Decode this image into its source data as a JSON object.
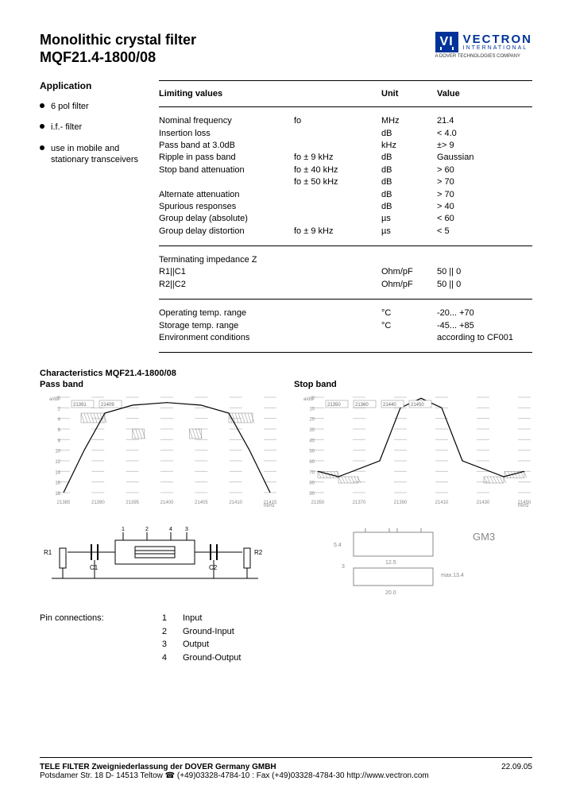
{
  "colors": {
    "brand": "#003399",
    "text": "#000000",
    "bg": "#ffffff",
    "grid": "#cccccc",
    "hatch": "#999999"
  },
  "header": {
    "title_line1": "Monolithic crystal filter",
    "title_line2": "MQF21.4-1800/08",
    "logo_mark": "VI",
    "logo_name": "VECTRON",
    "logo_sub": "INTERNATIONAL",
    "logo_tag": "A DOVER TECHNOLOGIES COMPANY"
  },
  "application": {
    "heading": "Application",
    "items": [
      "6 pol filter",
      "i.f.- filter",
      "use in mobile and stationary transceivers"
    ]
  },
  "spec_header": {
    "param": "Limiting values",
    "unit": "Unit",
    "value": "Value"
  },
  "specs_main": [
    {
      "param": "Nominal frequency",
      "cond": "fo",
      "unit": "MHz",
      "value": "21.4"
    },
    {
      "param": "Insertion loss",
      "cond": "",
      "unit": "dB",
      "value": "< 4.0"
    },
    {
      "param": "Pass band at 3.0dB",
      "cond": "",
      "unit": "kHz",
      "value": "±> 9"
    },
    {
      "param": "Ripple in pass band",
      "cond": "fo ±  9 kHz",
      "unit": "dB",
      "value": "Gaussian"
    },
    {
      "param": "Stop band attenuation",
      "cond": "fo ±  40 kHz",
      "unit": "dB",
      "value": "> 60"
    },
    {
      "param": "",
      "cond": "fo ±  50 kHz",
      "unit": "dB",
      "value": "> 70"
    },
    {
      "param": "Alternate attenuation",
      "cond": "",
      "unit": "dB",
      "value": "> 70"
    },
    {
      "param": "Spurious responses",
      "cond": "",
      "unit": "dB",
      "value": "> 40"
    },
    {
      "param": "Group delay (absolute)",
      "cond": "",
      "unit": "µs",
      "value": "< 60"
    },
    {
      "param": "Group delay distortion",
      "cond": "fo  ± 9 kHz",
      "unit": "µs",
      "value": "<  5"
    }
  ],
  "specs_impedance": [
    {
      "param": "Terminating impedance Z",
      "cond": "",
      "unit": "",
      "value": ""
    },
    {
      "param": "R1||C1",
      "cond": "",
      "unit": "Ohm/pF",
      "value": "50 ||  0"
    },
    {
      "param": "R2||C2",
      "cond": "",
      "unit": "Ohm/pF",
      "value": "50 ||  0"
    }
  ],
  "specs_env": [
    {
      "param": "Operating temp. range",
      "cond": "",
      "unit": "°C",
      "value": "-20... +70"
    },
    {
      "param": "Storage temp. range",
      "cond": "",
      "unit": "°C",
      "value": "-45... +85"
    },
    {
      "param": "Environment conditions",
      "cond": "",
      "unit": "",
      "value": "according to CF001"
    }
  ],
  "characteristics": {
    "title": "Characteristics    MQF21.4-1800/08",
    "passband_label": "Pass band",
    "stopband_label": "Stop band",
    "passband_chart": {
      "type": "line",
      "xlabel": "f/kHz",
      "ylabel": "a/dB",
      "xlim": [
        21385,
        21415
      ],
      "ylim": [
        0,
        18
      ],
      "xticks": [
        21385,
        21390,
        21395,
        21400,
        21405,
        21410,
        21415
      ],
      "yticks": [
        0,
        2,
        4,
        6,
        8,
        10,
        12,
        14,
        16,
        18
      ],
      "markers": [
        "21391",
        "21409"
      ],
      "curve_x": [
        21385,
        21388,
        21391,
        21395,
        21400,
        21405,
        21409,
        21412,
        21415
      ],
      "curve_y": [
        18,
        10,
        3,
        1.5,
        1,
        1.5,
        3,
        10,
        18
      ],
      "curve_color": "#000000",
      "hatch_regions": true
    },
    "stopband_chart": {
      "type": "line",
      "xlabel": "f/kHz",
      "ylabel": "a/dB",
      "xlim": [
        21350,
        21450
      ],
      "ylim": [
        0,
        90
      ],
      "xticks": [
        21350,
        21370,
        21390,
        21410,
        21430,
        21450
      ],
      "yticks": [
        0,
        10,
        20,
        30,
        40,
        50,
        60,
        70,
        80,
        90
      ],
      "markers": [
        "21350",
        "21360",
        "21440",
        "21450"
      ],
      "curve_x": [
        21350,
        21360,
        21380,
        21390,
        21400,
        21410,
        21420,
        21440,
        21450
      ],
      "curve_y": [
        70,
        75,
        60,
        10,
        1,
        10,
        60,
        75,
        70
      ],
      "curve_color": "#000000",
      "hatch_regions": true
    }
  },
  "schematic": {
    "labels": [
      "R1",
      "C1",
      "C2",
      "R2"
    ],
    "pins": [
      "1",
      "2",
      "3",
      "4"
    ]
  },
  "package_drawing": {
    "label": "GM3",
    "dims": [
      "12.5",
      "5.4",
      "3",
      "20.0",
      "max.13.4"
    ]
  },
  "pin_connections": {
    "heading": "Pin connections:",
    "rows": [
      {
        "num": "1",
        "desc": "Input"
      },
      {
        "num": "2",
        "desc": "Ground-Input"
      },
      {
        "num": "3",
        "desc": "Output"
      },
      {
        "num": "4",
        "desc": "Ground-Output"
      }
    ]
  },
  "footer": {
    "company": "TELE FILTER Zweigniederlassung der DOVER Germany GMBH",
    "date": "22.09.05",
    "address": "Potsdamer Str. 18  D- 14513  Teltow   ☎ (+49)03328-4784-10 : Fax (+49)03328-4784-30   http://www.vectron.com"
  }
}
